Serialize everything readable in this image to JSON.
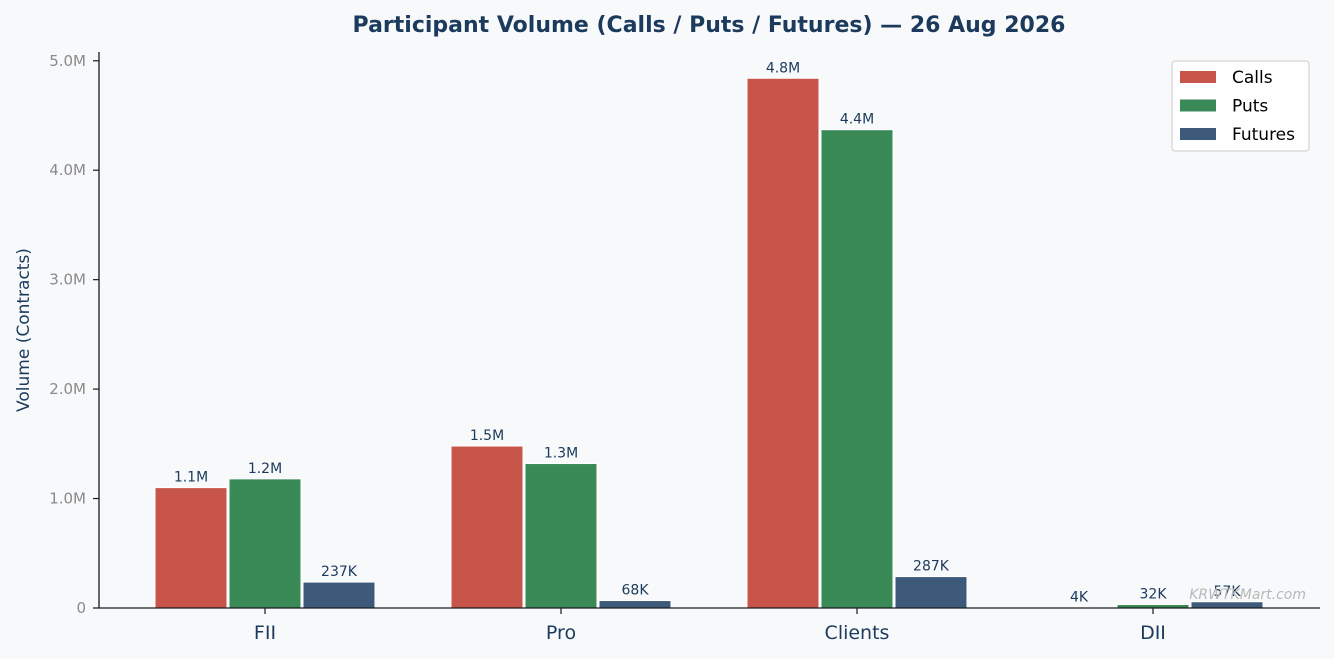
{
  "chart_data": {
    "type": "bar",
    "title": "Participant Volume (Calls / Puts / Futures) — 26 Aug 2026",
    "xlabel": "",
    "ylabel": "Volume (Contracts)",
    "categories": [
      "FII",
      "Pro",
      "Clients",
      "DII"
    ],
    "series": [
      {
        "name": "Calls",
        "color": "#c8554a",
        "values": [
          1100000,
          1480000,
          4840000,
          4000
        ],
        "labels": [
          "1.1M",
          "1.5M",
          "4.8M",
          "4K"
        ]
      },
      {
        "name": "Puts",
        "color": "#3a8a58",
        "values": [
          1180000,
          1320000,
          4370000,
          32000
        ],
        "labels": [
          "1.2M",
          "1.3M",
          "4.4M",
          "32K"
        ]
      },
      {
        "name": "Futures",
        "color": "#3d5a7a",
        "values": [
          237000,
          68000,
          287000,
          57000
        ],
        "labels": [
          "237K",
          "68K",
          "287K",
          "57K"
        ]
      }
    ],
    "ylim": [
      0,
      5080000
    ],
    "yticks": [
      0,
      1000000,
      2000000,
      3000000,
      4000000,
      5000000
    ],
    "ytick_labels": [
      "0",
      "1.0M",
      "2.0M",
      "3.0M",
      "4.0M",
      "5.0M"
    ],
    "grid": false,
    "legend_position": "top-right",
    "watermark": "KRWTKMart.com"
  }
}
